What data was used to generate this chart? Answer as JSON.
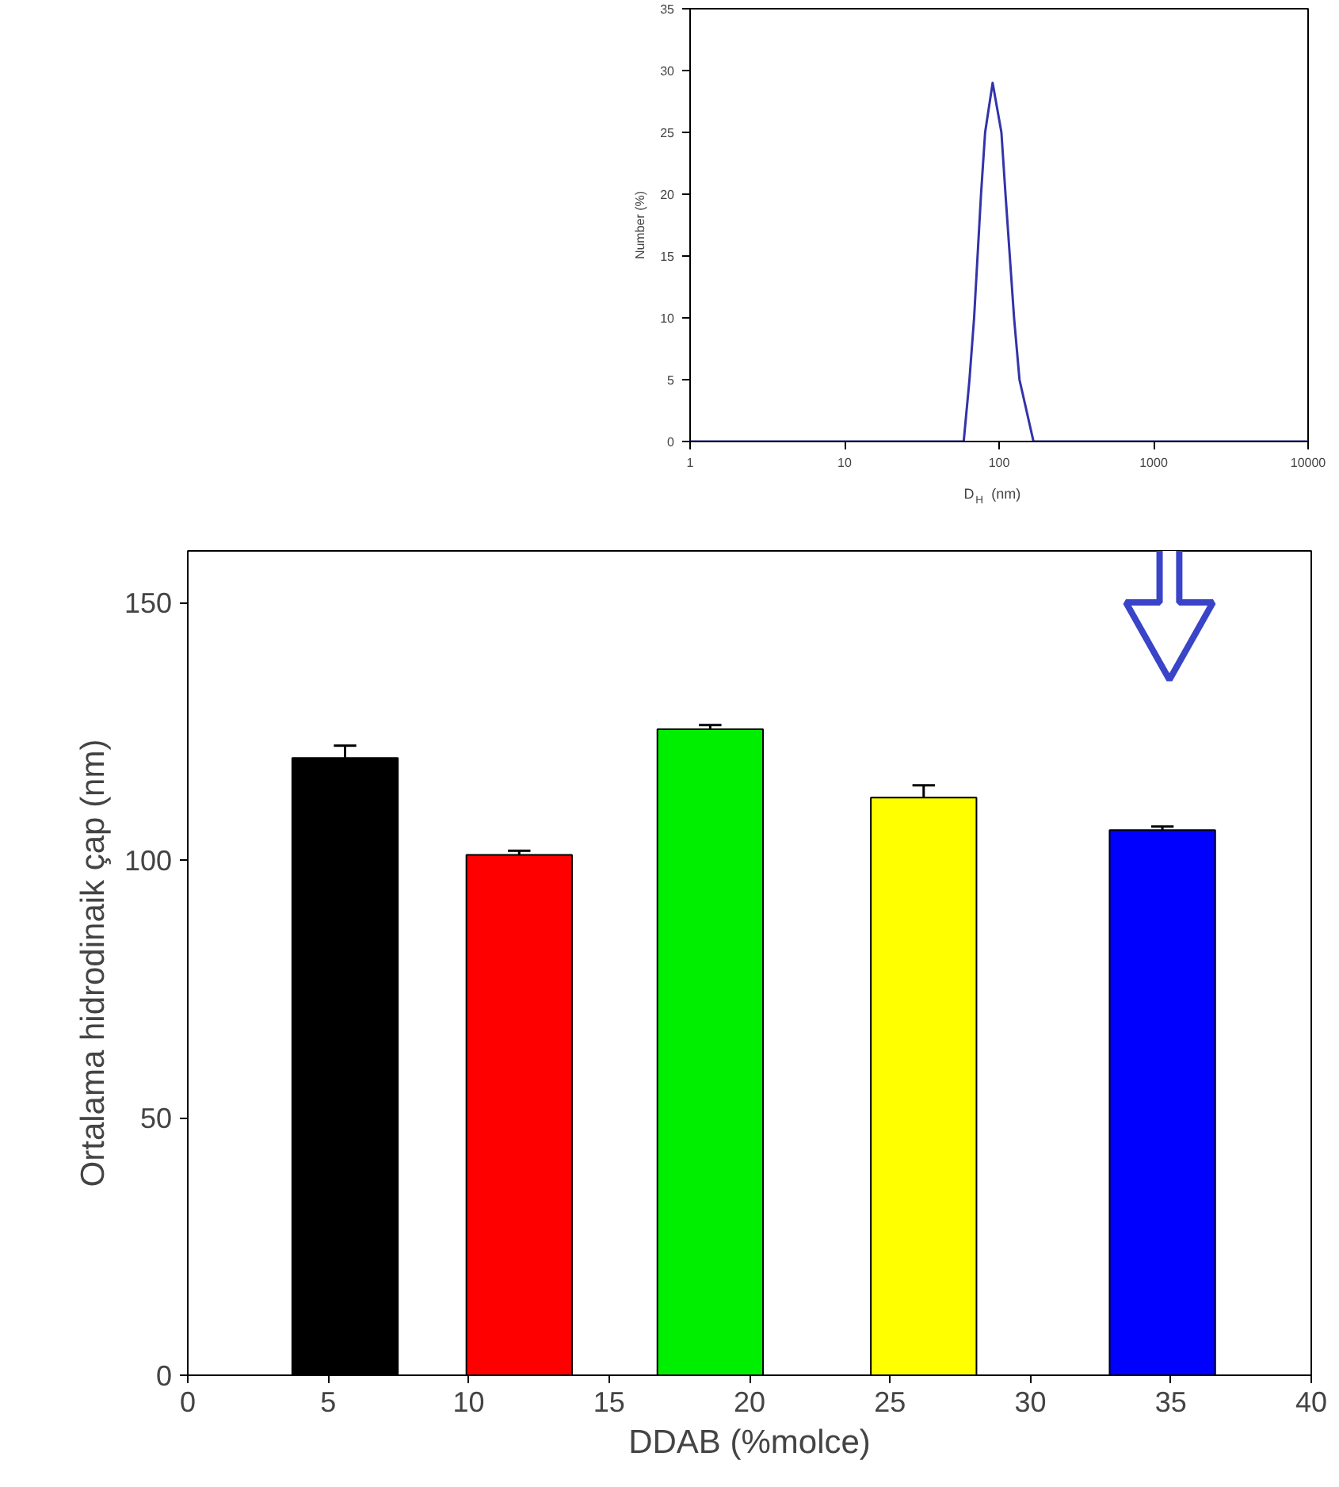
{
  "chart_data": [
    {
      "type": "line",
      "xlabel": "D$_{H}$ (nm)",
      "ylabel": "Number (%)",
      "log": "x",
      "xlim": [
        1,
        10000
      ],
      "xticks": [
        1,
        10,
        100,
        1000,
        10000
      ],
      "ylim": [
        0,
        35
      ],
      "yticks": [
        0,
        5,
        10,
        15,
        20,
        25,
        30,
        35
      ],
      "grid": false,
      "x": [
        1,
        59,
        64.3,
        68.9,
        76.4,
        81.2,
        90.8,
        103.5,
        110,
        125,
        135.5,
        167,
        10000
      ],
      "series": [
        {
          "color": "#3333aa",
          "values": [
            0,
            0,
            5,
            10,
            20,
            25,
            29,
            25,
            20,
            10,
            5,
            0,
            0
          ]
        }
      ]
    },
    {
      "type": "bar",
      "xlabel": "DDAB (%molce)",
      "ylabel": "Ortalama hidrodinaik çap (nm)",
      "xlim": [
        0,
        40
      ],
      "xticks": [
        0,
        5,
        10,
        15,
        20,
        25,
        30,
        35,
        40
      ],
      "ylim": [
        0,
        160
      ],
      "yticks": [
        0,
        50,
        100,
        150
      ],
      "grid": false,
      "x": [
        5.6,
        11.8,
        18.6,
        26.2,
        34.7
      ],
      "values": [
        119.8,
        101.0,
        125.4,
        112.1,
        105.8
      ],
      "errors": [
        2.4,
        0.8,
        0.8,
        2.4,
        0.7
      ],
      "colors": [
        "#000000",
        "#ff0000",
        "#00ee00",
        "#ffff00",
        "#0000ff"
      ]
    }
  ]
}
